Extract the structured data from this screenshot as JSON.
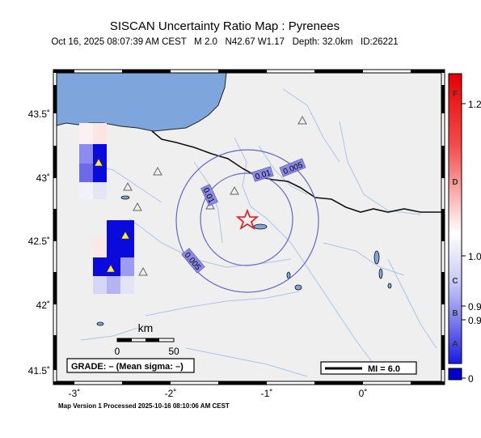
{
  "title": "SISCAN Uncertainty Ratio Map : Pyrenees",
  "subtitle": "Oct 16, 2025 08:07:39 AM CEST   M 2.0   N42.67 W1.17   Depth: 32.0km   ID:26221",
  "footer": "Map Version 1 Processed 2025-10-16 08:10:06 AM CEST",
  "grade_box": "GRADE: – (Mean sigma: –)",
  "scale_bar": {
    "title": "km",
    "ticks": [
      "0",
      "50"
    ]
  },
  "mi_legend": "MI = 6.0",
  "axes": {
    "x_ticks": [
      "-3˚",
      "-2˚",
      "-1˚",
      "0˚"
    ],
    "y_ticks": [
      "43.5˚",
      "43˚",
      "42.5˚",
      "42˚",
      "41.5˚"
    ]
  },
  "contours": [
    {
      "label": "0.005"
    },
    {
      "label": "0.01"
    },
    {
      "label": "0.005"
    },
    {
      "label": "0.01"
    }
  ],
  "colorbar": {
    "letters": [
      "F",
      "D",
      "C",
      "B",
      "A"
    ],
    "values": [
      "1.2",
      "1.0",
      "0.9",
      "0.9",
      "0"
    ],
    "colors": {
      "high": "#ff0000",
      "mid": "#ffffff",
      "low": "#0000ff",
      "nodata": "#0000cc"
    }
  },
  "epicenter": {
    "lat": 42.67,
    "lon": -1.17,
    "color": "#e8141c"
  },
  "colors": {
    "sea": "#7ea6dc",
    "land": "#efefef",
    "rivers": "#a9c6e6",
    "contour": "#6666cc",
    "contour_label_bg": "#8a8ae6"
  }
}
